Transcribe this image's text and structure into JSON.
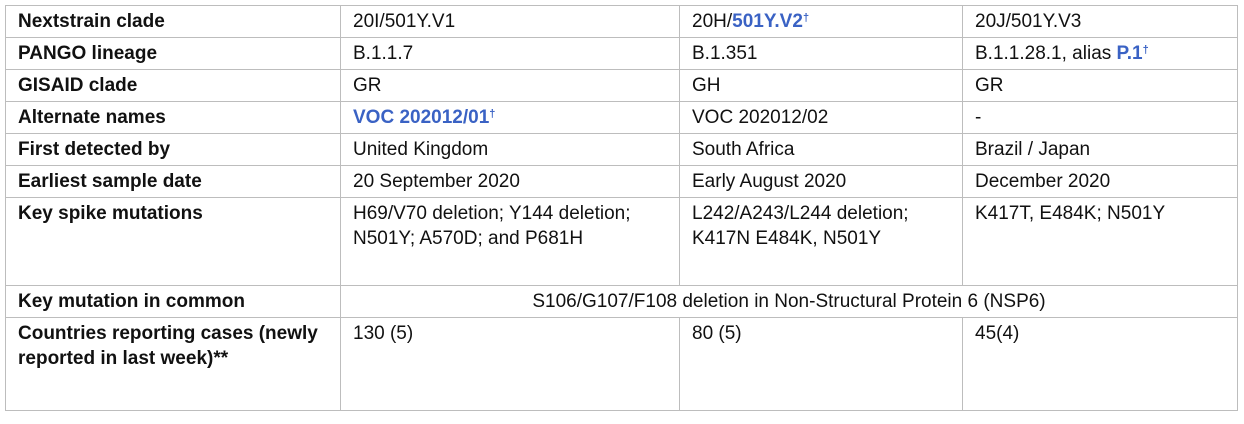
{
  "rows": [
    {
      "label": "Nextstrain clade",
      "v1": "20I/501Y.V1",
      "v2_prefix": "20H/",
      "v2_link": "501Y.V2",
      "v2_mark": "†",
      "v3": "20J/501Y.V3"
    },
    {
      "label": "PANGO lineage",
      "v1": "B.1.1.7",
      "v2": "B.1.351",
      "v3_prefix": "B.1.1.28.1, alias ",
      "v3_link": "P.1",
      "v3_mark": "†"
    },
    {
      "label": "GISAID clade",
      "v1": "GR",
      "v2": "GH",
      "v3": "GR"
    },
    {
      "label": "Alternate names",
      "v1_link": "VOC 202012/01",
      "v1_mark": "†",
      "v2": "VOC 202012/02",
      "v3": "-"
    },
    {
      "label": "First detected by",
      "v1": "United Kingdom",
      "v2": "South Africa",
      "v3": "Brazil / Japan"
    },
    {
      "label": "Earliest sample date",
      "v1": "20 September 2020",
      "v2": "Early August 2020",
      "v3": "December 2020"
    },
    {
      "label": "Key spike mutations",
      "v1": "H69/V70 deletion; Y144 deletion; N501Y; A570D;  and P681H",
      "v2": "L242/A243/L244 deletion; K417N E484K, N501Y",
      "v3": "K417T, E484K; N501Y"
    },
    {
      "label": "Key mutation in common",
      "common": "S106/G107/F108 deletion in Non-Structural Protein 6 (NSP6)"
    },
    {
      "label": "Countries reporting cases (newly reported in last week)**",
      "v1": "130 (5)",
      "v2": "80 (5)",
      "v3": "45(4)"
    }
  ],
  "colors": {
    "link": "#3a62c4",
    "border": "#bdbdbd"
  }
}
